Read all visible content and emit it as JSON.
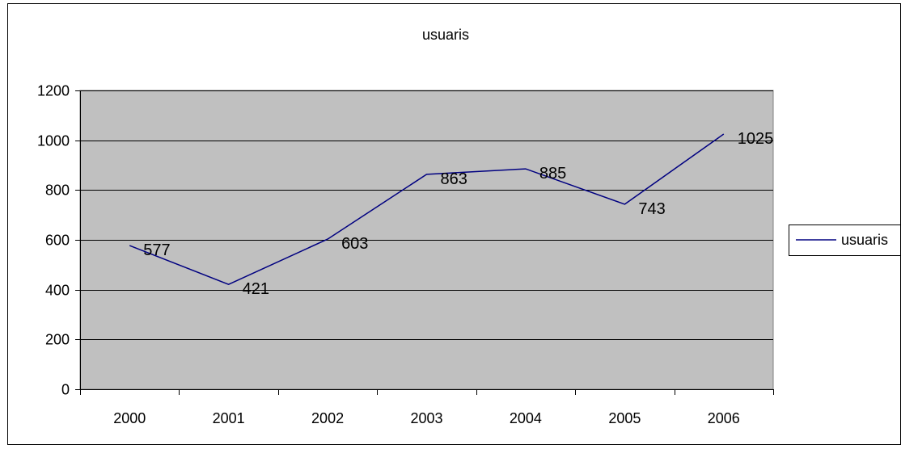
{
  "chart_data": {
    "type": "line",
    "title": "usuaris",
    "xlabel": "",
    "ylabel": "",
    "categories": [
      "2000",
      "2001",
      "2002",
      "2003",
      "2004",
      "2005",
      "2006"
    ],
    "series": [
      {
        "name": "usuaris",
        "values": [
          577,
          421,
          603,
          863,
          885,
          743,
          1025
        ]
      }
    ],
    "ylim": [
      0,
      1200
    ],
    "yticks": [
      0,
      200,
      400,
      600,
      800,
      1000,
      1200
    ],
    "grid": true,
    "legend": "right",
    "colors": {
      "plot_background": "#c0c0c0",
      "line": "#000080",
      "gridline": "#000000",
      "border": "#000000"
    }
  }
}
